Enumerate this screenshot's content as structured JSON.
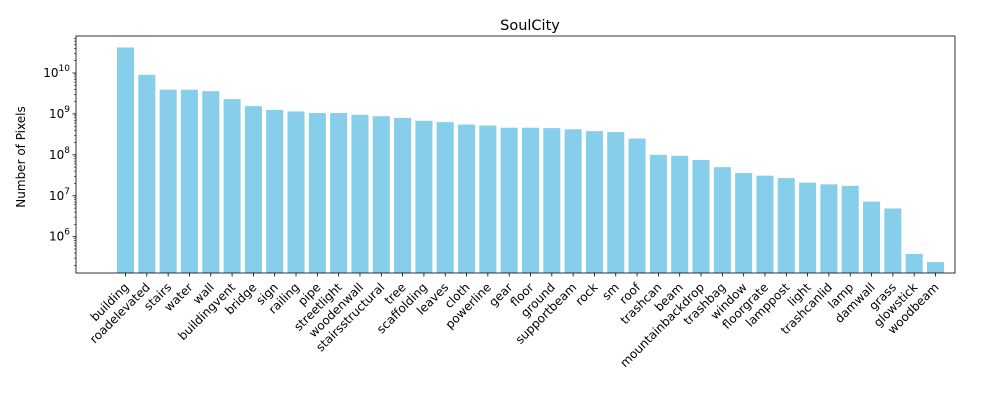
{
  "chart_data": {
    "type": "bar",
    "title": "SoulCity",
    "xlabel": "",
    "ylabel": "Number of Pixels",
    "yscale": "log",
    "ylim": [
      130000,
      80000000000
    ],
    "bar_color": "#87ceeb",
    "grid": false,
    "categories": [
      "building",
      "roadelevated",
      "stairs",
      "water",
      "wall",
      "buildingvent",
      "bridge",
      "sign",
      "railing",
      "pipe",
      "streetlight",
      "woodenwall",
      "stairsstructural",
      "tree",
      "scaffolding",
      "leaves",
      "cloth",
      "powerline",
      "gear",
      "floor",
      "ground",
      "supportbeam",
      "rock",
      "sm",
      "roof",
      "trashcan",
      "beam",
      "mountainbackdrop",
      "trashbag",
      "window",
      "floorgrate",
      "lamppost",
      "light",
      "trashcanlid",
      "lamp",
      "damwall",
      "grass",
      "glowstick",
      "woodbeam"
    ],
    "values": [
      42000000000,
      9000000000,
      3900000000,
      3900000000,
      3600000000,
      2300000000,
      1550000000,
      1250000000,
      1150000000,
      1050000000,
      1050000000,
      950000000,
      880000000,
      800000000,
      680000000,
      630000000,
      550000000,
      520000000,
      460000000,
      460000000,
      450000000,
      420000000,
      380000000,
      360000000,
      250000000,
      100000000,
      95000000,
      75000000,
      50000000,
      36000000,
      31000000,
      27000000,
      21000000,
      19000000,
      17500000,
      7200000,
      4900000,
      380000,
      240000
    ],
    "yticks": [
      {
        "value": 1000000,
        "base": "10",
        "exp": "6"
      },
      {
        "value": 10000000,
        "base": "10",
        "exp": "7"
      },
      {
        "value": 100000000,
        "base": "10",
        "exp": "8"
      },
      {
        "value": 1000000000,
        "base": "10",
        "exp": "9"
      },
      {
        "value": 10000000000,
        "base": "10",
        "exp": "10"
      }
    ]
  }
}
